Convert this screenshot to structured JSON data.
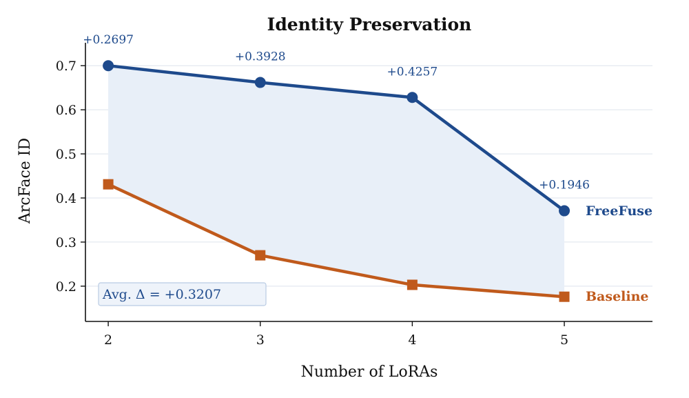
{
  "chart_data": {
    "type": "line",
    "title": "Identity Preservation",
    "xlabel": "Number of LoRAs",
    "ylabel": "ArcFace ID",
    "x": [
      2,
      3,
      4,
      5
    ],
    "xlim": [
      1.85,
      5.58
    ],
    "ylim": [
      0.12,
      0.752
    ],
    "yticks": [
      0.2,
      0.3,
      0.4,
      0.5,
      0.6,
      0.7
    ],
    "ytick_labels": [
      "0.2",
      "0.3",
      "0.4",
      "0.5",
      "0.6",
      "0.7"
    ],
    "xtick_labels": [
      "2",
      "3",
      "4",
      "5"
    ],
    "grid": "horizontal",
    "series": [
      {
        "name": "FreeFuse",
        "values": [
          0.7,
          0.662,
          0.628,
          0.371
        ],
        "color": "#1e4a8c",
        "marker": "circle"
      },
      {
        "name": "Baseline",
        "values": [
          0.431,
          0.27,
          0.203,
          0.176
        ],
        "color": "#c05a1c",
        "marker": "square"
      }
    ],
    "delta_labels": [
      "+0.2697",
      "+0.3928",
      "+0.4257",
      "+0.1946"
    ],
    "fill_between_color": "#e8eff8",
    "annotation": "Avg. Δ = +0.3207"
  }
}
